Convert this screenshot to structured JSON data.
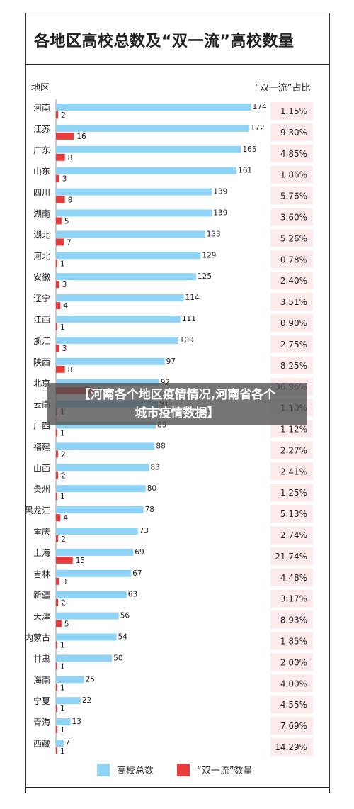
{
  "chart_data": {
    "type": "bar",
    "title": "各地区高校总数及“双一流”高校数量",
    "category_header": "地区",
    "ratio_header": "“双一流”占比",
    "categories": [
      "河南",
      "江苏",
      "广东",
      "山东",
      "四川",
      "湖南",
      "湖北",
      "河北",
      "安徽",
      "辽宁",
      "江西",
      "浙江",
      "陕西",
      "北京",
      "云南",
      "广西",
      "福建",
      "山西",
      "贵州",
      "黑龙江",
      "重庆",
      "上海",
      "吉林",
      "新疆",
      "天津",
      "内蒙古",
      "甘肃",
      "海南",
      "宁夏",
      "青海",
      "西藏"
    ],
    "series": [
      {
        "name": "高校总数",
        "color": "#8fd3f6",
        "values": [
          174,
          172,
          165,
          161,
          139,
          139,
          133,
          129,
          125,
          114,
          111,
          109,
          97,
          92,
          91,
          89,
          88,
          83,
          80,
          78,
          73,
          69,
          67,
          63,
          56,
          54,
          50,
          25,
          22,
          13,
          7
        ]
      },
      {
        "name": "“双一流”数量",
        "color": "#e83c3c",
        "values": [
          2,
          16,
          8,
          3,
          8,
          5,
          7,
          1,
          3,
          4,
          1,
          3,
          8,
          34,
          1,
          1,
          2,
          2,
          1,
          4,
          2,
          15,
          3,
          2,
          5,
          1,
          1,
          1,
          1,
          1,
          1
        ]
      }
    ],
    "ratios": [
      "1.15%",
      "9.30%",
      "4.85%",
      "1.86%",
      "5.76%",
      "3.60%",
      "5.26%",
      "0.78%",
      "2.40%",
      "3.51%",
      "0.90%",
      "2.75%",
      "8.25%",
      "36.96%",
      "1.10%",
      "1.12%",
      "2.27%",
      "2.41%",
      "1.25%",
      "5.13%",
      "2.74%",
      "21.74%",
      "4.48%",
      "3.17%",
      "8.93%",
      "1.85%",
      "2.00%",
      "4.00%",
      "4.55%",
      "7.69%",
      "14.29%"
    ],
    "ratio_bg": "#fdeaea",
    "xlim": [
      0,
      190
    ]
  },
  "overlay": {
    "line1": "【河南各个地区疫情情况,河南省各个",
    "line2": "城市疫情数据】"
  }
}
